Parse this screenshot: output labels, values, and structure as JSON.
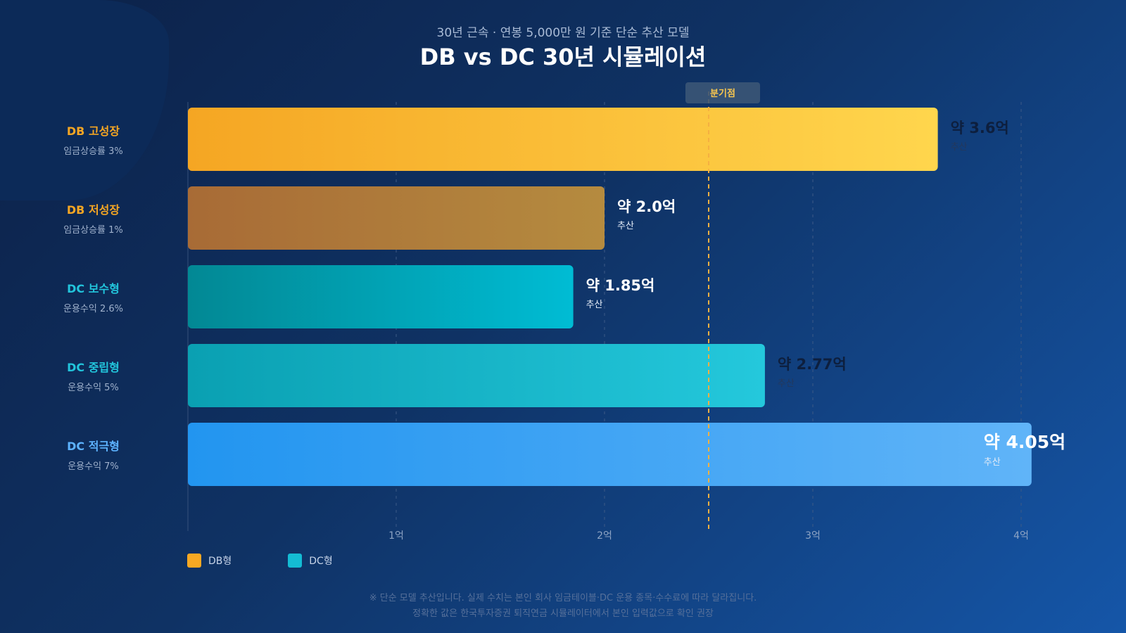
{
  "header": {
    "subtitle": "30년 근속 · 연봉 5,000만 원 기준 단순 추산 모델",
    "title": "DB vs DC 30년 시뮬레이션"
  },
  "rows": [
    {
      "name": "DB 고성장",
      "sub": "임금상승률 3%",
      "color": "#f7a823"
    },
    {
      "name": "DB 저성장",
      "sub": "임금상승률 1%",
      "color": "#f7a823"
    },
    {
      "name": "DC 보수형",
      "sub": "운용수익 2.6%",
      "color": "#22c5dc"
    },
    {
      "name": "DC 중립형",
      "sub": "운용수익 5%",
      "color": "#22c5dc"
    },
    {
      "name": "DC 적극형",
      "sub": "운용수익 7%",
      "color": "#5db3ff"
    }
  ],
  "chart_data": {
    "type": "bar",
    "orientation": "horizontal",
    "categories": [
      "DB 고성장",
      "DB 저성장",
      "DC 보수형",
      "DC 중립형",
      "DC 적극형"
    ],
    "values": [
      3.6,
      2.0,
      1.85,
      2.77,
      4.05
    ],
    "value_labels": [
      "약 3.6억",
      "약 2.0억",
      "약 1.85억",
      "약 2.77억",
      "약 4.05억"
    ],
    "value_sublabel": "추산",
    "xlim": [
      0,
      4
    ],
    "xticks": [
      1,
      2,
      3,
      4
    ],
    "xtick_labels": [
      "1억",
      "2억",
      "3억",
      "4억"
    ],
    "grid": true,
    "reference_line": {
      "value": 2.5,
      "label": "분기점"
    },
    "legend": [
      {
        "name": "DB형",
        "color": "#f7a823"
      },
      {
        "name": "DC형",
        "color": "#14bcd4"
      }
    ],
    "legend_position": "bottom-left"
  },
  "footnote": {
    "line1": "※ 단순 모델 추산입니다. 실제 수치는 본인 회사 임금테이블·DC 운용 종목·수수료에 따라 달라집니다.",
    "line2": "정확한 값은 한국투자증권 퇴직연금 시뮬레이터에서 본인 입력값으로 확인 권장"
  }
}
